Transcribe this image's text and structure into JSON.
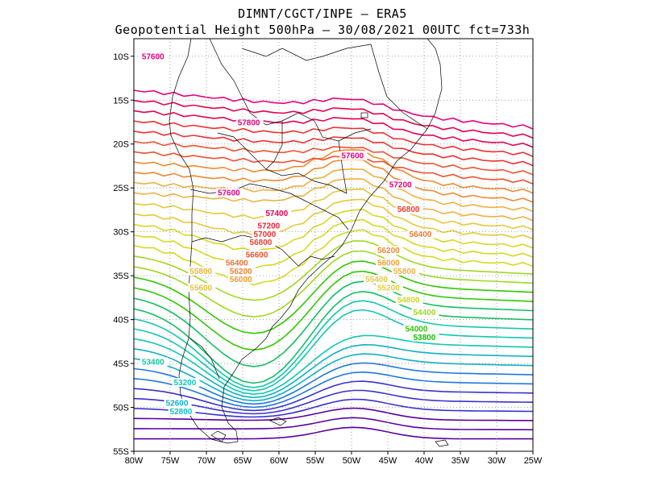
{
  "header": {
    "line1": "DIMNT/CGCT/INPE  —   ERA5",
    "line2": "Geopotential Height 500hPa  —   30/08/2021 00UTC fct=733h"
  },
  "map": {
    "lon_ticks": [
      "80W",
      "75W",
      "70W",
      "65W",
      "60W",
      "55W",
      "50W",
      "45W",
      "40W",
      "35W",
      "30W",
      "25W"
    ],
    "lat_ticks": [
      "10S",
      "15S",
      "20S",
      "25S",
      "30S",
      "35S",
      "40S",
      "45S",
      "50S",
      "55S"
    ],
    "lon_range": [
      -80,
      -25
    ],
    "lat_range": [
      -55,
      -8
    ]
  },
  "contours": {
    "interval_gpm": 200,
    "min_gpm": 51000,
    "max_gpm": 57800,
    "labels": [
      {
        "text": "57600",
        "color": "#e6007e"
      },
      {
        "text": "57800",
        "color": "#e6007e"
      },
      {
        "text": "57600",
        "color": "#e6007e"
      },
      {
        "text": "57600",
        "color": "#e6007e"
      },
      {
        "text": "57200",
        "color": "#e6007e"
      },
      {
        "text": "57400",
        "color": "#e8004f"
      },
      {
        "text": "57200",
        "color": "#ef1f2f"
      },
      {
        "text": "57000",
        "color": "#ef2f2f"
      },
      {
        "text": "56800",
        "color": "#ef3f2f"
      },
      {
        "text": "56800",
        "color": "#f04030"
      },
      {
        "text": "56600",
        "color": "#f05030"
      },
      {
        "text": "56400",
        "color": "#f07030"
      },
      {
        "text": "56400",
        "color": "#f07a30"
      },
      {
        "text": "56200",
        "color": "#f08030"
      },
      {
        "text": "56200",
        "color": "#f08a30"
      },
      {
        "text": "56000",
        "color": "#f09a30"
      },
      {
        "text": "56000",
        "color": "#f0a030"
      },
      {
        "text": "55800",
        "color": "#f0b040"
      },
      {
        "text": "55800",
        "color": "#f0b040"
      },
      {
        "text": "55600",
        "color": "#e8c040"
      },
      {
        "text": "55400",
        "color": "#e0c840"
      },
      {
        "text": "55200",
        "color": "#e0d040"
      },
      {
        "text": "54800",
        "color": "#d0d820"
      },
      {
        "text": "54400",
        "color": "#a0d820"
      },
      {
        "text": "54000",
        "color": "#30c800"
      },
      {
        "text": "53800",
        "color": "#10c000"
      },
      {
        "text": "53400",
        "color": "#10c8a0"
      },
      {
        "text": "53200",
        "color": "#10c8c0"
      },
      {
        "text": "52800",
        "color": "#10c0c8"
      },
      {
        "text": "52600",
        "color": "#10b0c8"
      }
    ]
  }
}
